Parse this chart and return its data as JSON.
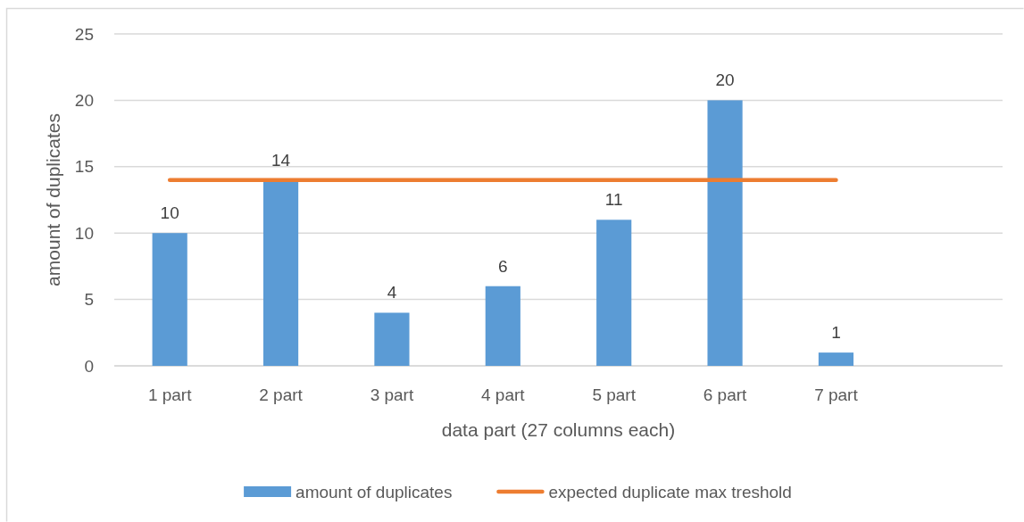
{
  "chart_data": {
    "type": "bar",
    "xlabel": "data part (27 columns each)",
    "ylabel": "amount of duplicates",
    "categories": [
      "1 part",
      "2 part",
      "3 part",
      "4 part",
      "5 part",
      "6 part",
      "7 part",
      null
    ],
    "series": [
      {
        "name": "amount of duplicates",
        "type": "bar",
        "color": "#5b9bd5",
        "values": [
          10,
          14,
          4,
          6,
          11,
          20,
          1,
          null
        ],
        "value_labels": [
          "10",
          "14",
          "4",
          "6",
          "11",
          "20",
          "1",
          null
        ]
      },
      {
        "name": "expected duplicate max treshold",
        "type": "line",
        "color": "#ed7d31",
        "values": [
          14,
          14,
          14,
          14,
          14,
          14,
          14,
          null
        ]
      }
    ],
    "ylim": [
      0,
      25
    ],
    "yticks": [
      0,
      5,
      10,
      15,
      20,
      25
    ],
    "grid": "y",
    "legend": "bottom"
  }
}
